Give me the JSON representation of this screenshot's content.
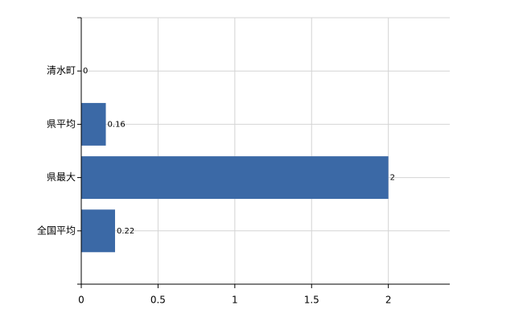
{
  "chart_data": {
    "type": "hbar",
    "categories": [
      "清水町",
      "県平均",
      "県最大",
      "全国平均"
    ],
    "values": [
      0,
      0.16,
      2,
      0.22
    ],
    "color": "#3b69a6",
    "xlim": [
      0,
      2.4
    ],
    "xticks": [
      0,
      0.5,
      1,
      1.5,
      2
    ],
    "grid": true
  }
}
